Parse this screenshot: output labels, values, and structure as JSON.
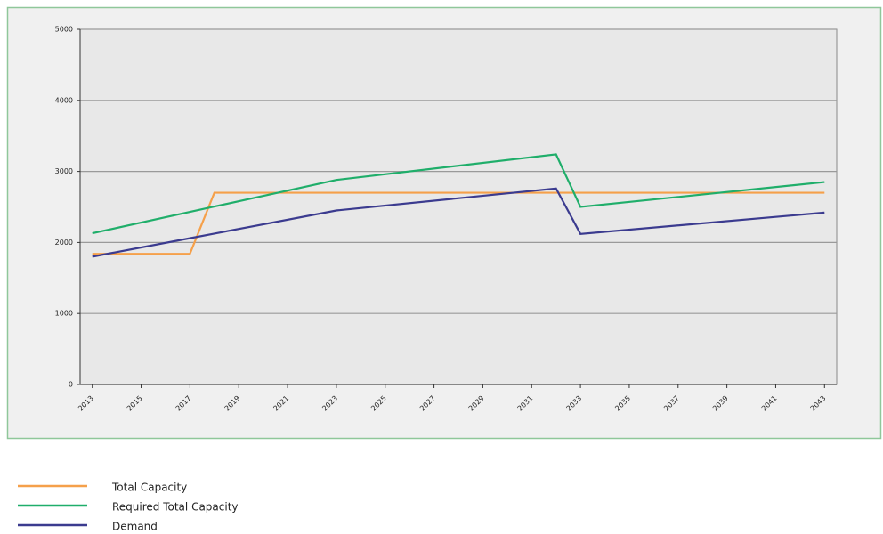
{
  "chart_data": {
    "type": "line",
    "x": [
      2013,
      2017,
      2018,
      2023,
      2032,
      2033,
      2043
    ],
    "series": [
      {
        "name": "Total Capacity",
        "color": "#f5a04a",
        "values": [
          1840,
          1840,
          2700,
          2700,
          2700,
          2700,
          2700
        ]
      },
      {
        "name": "Required Total Capacity",
        "color": "#1fae6a",
        "values": [
          2130,
          2430,
          2505,
          2880,
          3240,
          2500,
          2850
        ]
      },
      {
        "name": "Demand",
        "color": "#3b3b8f",
        "values": [
          1800,
          2060,
          2125,
          2450,
          2760,
          2120,
          2420
        ]
      }
    ],
    "xlim": [
      2012.5,
      2043.5
    ],
    "xticks": [
      2013,
      2015,
      2017,
      2019,
      2021,
      2023,
      2025,
      2027,
      2029,
      2031,
      2033,
      2035,
      2037,
      2039,
      2041,
      2043
    ],
    "ylim": [
      0,
      5000
    ],
    "yticks": [
      0,
      1000,
      2000,
      3000,
      4000,
      5000
    ],
    "grid": true,
    "legend": "bottom-left"
  }
}
